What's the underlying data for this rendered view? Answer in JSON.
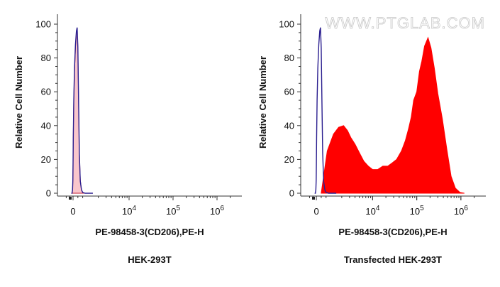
{
  "watermark": "WWW.PTGLAB.COM",
  "chart_data": [
    {
      "type": "area",
      "title": "",
      "caption": "HEK-293T",
      "xlabel": "PE-98458-3(CD206),PE-H",
      "ylabel": "Relative Cell Number",
      "ylim": [
        0,
        100
      ],
      "yticks": [
        "0",
        "20",
        "40",
        "60",
        "80",
        "100"
      ],
      "xticks": [
        {
          "base": "0",
          "exp": ""
        },
        {
          "base": "10",
          "exp": "4"
        },
        {
          "base": "10",
          "exp": "5"
        },
        {
          "base": "10",
          "exp": "6"
        }
      ],
      "x_scale": "biexponential (log above ~10^3)",
      "grid": false,
      "series": [
        {
          "kind": "filled",
          "fill_color": "#f9c6cc",
          "stroke_color": "#c21b32",
          "x": [
            -200,
            -120,
            -60,
            -20,
            0,
            20,
            60,
            120,
            200,
            280,
            340,
            400,
            460,
            520,
            600,
            700,
            800,
            1000,
            1500
          ],
          "values": [
            0,
            0,
            2,
            8,
            18,
            35,
            55,
            72,
            86,
            95,
            97,
            86,
            55,
            25,
            8,
            2,
            0.5,
            0,
            0
          ]
        },
        {
          "kind": "line",
          "stroke_color": "#2a1e8f",
          "x": [
            -200,
            -120,
            -60,
            -20,
            0,
            20,
            60,
            120,
            200,
            280,
            340,
            400,
            460,
            520,
            600,
            700,
            800,
            1000,
            1500
          ],
          "values": [
            0,
            0,
            2,
            8,
            17,
            33,
            55,
            74,
            88,
            96,
            98,
            86,
            54,
            24,
            7,
            2,
            0.5,
            0,
            0
          ]
        }
      ]
    },
    {
      "type": "area",
      "title": "",
      "caption": "Transfected HEK-293T",
      "xlabel": "PE-98458-3(CD206),PE-H",
      "ylabel": "Relative Cell Number",
      "ylim": [
        0,
        100
      ],
      "yticks": [
        "0",
        "20",
        "40",
        "60",
        "80",
        "100"
      ],
      "xticks": [
        {
          "base": "0",
          "exp": ""
        },
        {
          "base": "10",
          "exp": "4"
        },
        {
          "base": "10",
          "exp": "5"
        },
        {
          "base": "10",
          "exp": "6"
        }
      ],
      "x_scale": "biexponential (log above ~10^3)",
      "grid": false,
      "series": [
        {
          "kind": "filled",
          "fill_color": "#ff0000",
          "stroke_color": "#ff0000",
          "x": [
            400,
            600,
            900,
            1300,
            1700,
            2200,
            2700,
            3200,
            4000,
            5000,
            6300,
            8000,
            10000,
            13000,
            17000,
            22000,
            28000,
            35000,
            45000,
            55000,
            65000,
            75000,
            85000,
            100000,
            115000,
            130000,
            150000,
            180000,
            210000,
            250000,
            300000,
            380000,
            480000,
            600000,
            750000,
            950000,
            1200000
          ],
          "values": [
            0,
            10,
            25,
            35,
            39,
            40,
            37,
            33,
            29,
            24,
            19,
            16,
            14,
            14,
            16,
            16,
            18,
            20,
            25,
            31,
            38,
            45,
            55,
            60,
            72,
            78,
            87,
            92,
            86,
            74,
            59,
            44,
            26,
            10,
            3,
            0.5,
            0
          ]
        },
        {
          "kind": "line",
          "stroke_color": "#2a1e8f",
          "x": [
            -200,
            -120,
            -60,
            -20,
            0,
            20,
            60,
            120,
            200,
            280,
            340,
            400,
            460,
            520,
            600,
            700,
            800,
            1000,
            1500
          ],
          "values": [
            0,
            0,
            2,
            8,
            17,
            33,
            55,
            74,
            88,
            96,
            98,
            86,
            54,
            24,
            7,
            2,
            0.5,
            0,
            0
          ]
        }
      ]
    }
  ]
}
